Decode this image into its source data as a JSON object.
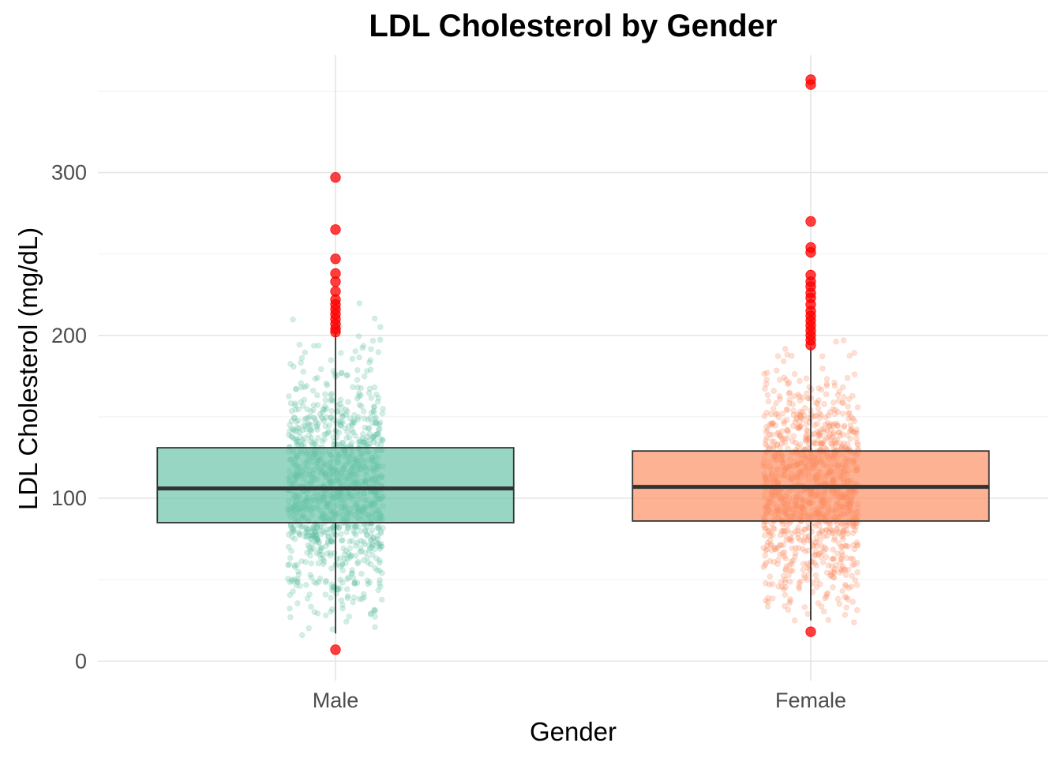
{
  "chart_data": {
    "type": "box",
    "title": "LDL Cholesterol by Gender",
    "xlabel": "Gender",
    "ylabel": "LDL Cholesterol (mg/dL)",
    "categories": [
      "Male",
      "Female"
    ],
    "ylim": [
      -12,
      372
    ],
    "yticks": [
      0,
      100,
      200,
      300
    ],
    "grid": true,
    "legend": "none",
    "colors": {
      "Male": "#66c2a5",
      "Female": "#fc8d62",
      "outlier": "#ff0000",
      "box_outline": "#333333"
    },
    "boxes": [
      {
        "name": "Male",
        "min": 17,
        "q1": 85,
        "median": 106,
        "q3": 131,
        "max": 201,
        "outliers": [
          7,
          202,
          204,
          207,
          210,
          213,
          216,
          219,
          222,
          227,
          233,
          238,
          247,
          265,
          297
        ]
      },
      {
        "name": "Female",
        "min": 25,
        "q1": 86,
        "median": 107,
        "q3": 129,
        "max": 193,
        "outliers": [
          18,
          194,
          197,
          200,
          203,
          206,
          209,
          212,
          215,
          219,
          223,
          226,
          230,
          233,
          237,
          251,
          254,
          270,
          354,
          357
        ]
      }
    ]
  }
}
